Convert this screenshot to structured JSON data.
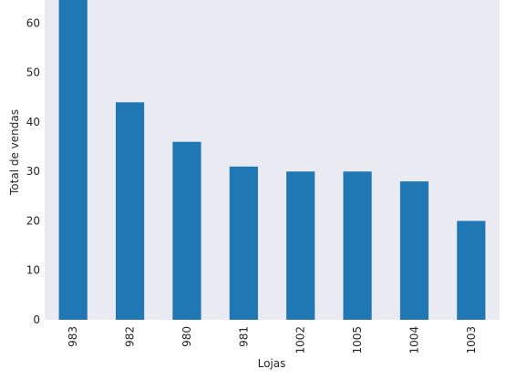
{
  "chart_data": {
    "type": "bar",
    "title": "",
    "xlabel": "Lojas",
    "ylabel": "Total de vendas",
    "categories": [
      "983",
      "982",
      "980",
      "981",
      "1002",
      "1005",
      "1004",
      "1003"
    ],
    "values": [
      65,
      44,
      36,
      31,
      30,
      30,
      28,
      20
    ],
    "ylim": [
      0,
      64.7
    ],
    "yticks": [
      0,
      10,
      20,
      30,
      40,
      50,
      60
    ],
    "grid": false,
    "legend": "none",
    "colors": {
      "bar": "#1f77b4",
      "plot_background": "#eaeaf2",
      "text": "#262626"
    }
  }
}
